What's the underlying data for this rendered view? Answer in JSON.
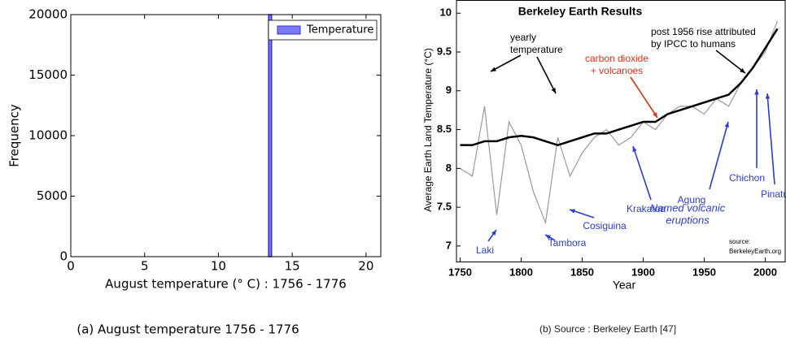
{
  "chart_data": [
    {
      "type": "histogram",
      "caption": "(a) August temperature 1756 - 1776",
      "xlabel": "August temperature ($^\\circ$ C) : 1756 - 1776",
      "ylabel": "Frequency",
      "bins": [
        13.4,
        13.6
      ],
      "series": [
        {
          "name": "Temperature",
          "color": "#7b7bf5",
          "values": [
            20000
          ]
        }
      ],
      "xlim": [
        0,
        21
      ],
      "xticks": [
        0,
        5,
        10,
        15,
        20
      ],
      "ylim": [
        0,
        20000
      ],
      "yticks": [
        0,
        5000,
        10000,
        15000,
        20000
      ],
      "legend": "upper right"
    },
    {
      "type": "line",
      "caption": "(b) Source : Berkeley Earth [47]",
      "title": "Berkeley Earth Results",
      "xlabel": "Year",
      "ylabel": "Average Earth Land Temperature (°C)",
      "x": [
        1750,
        1760,
        1770,
        1780,
        1790,
        1800,
        1810,
        1820,
        1830,
        1840,
        1850,
        1860,
        1870,
        1880,
        1890,
        1900,
        1910,
        1920,
        1930,
        1940,
        1950,
        1960,
        1970,
        1980,
        1990,
        2000,
        2010
      ],
      "series": [
        {
          "color": "#9a9a9a",
          "values": [
            8.0,
            7.9,
            8.8,
            7.4,
            8.6,
            8.3,
            7.7,
            7.3,
            8.4,
            7.9,
            8.2,
            8.4,
            8.5,
            8.3,
            8.4,
            8.6,
            8.5,
            8.7,
            8.8,
            8.8,
            8.7,
            8.9,
            8.8,
            9.1,
            9.3,
            9.5,
            9.9
          ]
        },
        {
          "color": "#000000",
          "values": [
            8.3,
            8.3,
            8.35,
            8.35,
            8.4,
            8.42,
            8.4,
            8.35,
            8.3,
            8.35,
            8.4,
            8.45,
            8.45,
            8.5,
            8.55,
            8.6,
            8.6,
            8.7,
            8.75,
            8.8,
            8.85,
            8.9,
            8.95,
            9.1,
            9.3,
            9.55,
            9.8
          ]
        }
      ],
      "xlim": [
        1747,
        2017
      ],
      "xticks": [
        1750,
        1800,
        1850,
        1900,
        1950,
        2000
      ],
      "ylim": [
        6.8,
        10.17
      ],
      "yticks": [
        7,
        7.5,
        8,
        8.5,
        9,
        9.5,
        10
      ],
      "annotations": [
        {
          "text": [
            "yearly",
            "temperature"
          ],
          "color": "#000000"
        },
        {
          "text": [
            "carbon dioxide",
            "+ volcanoes"
          ],
          "color": "#e0301e"
        },
        {
          "text": [
            "post 1956 rise attributed",
            "by IPCC to humans"
          ],
          "color": "#000000"
        },
        {
          "text": [
            "Laki"
          ],
          "color": "#2a3bd6"
        },
        {
          "text": [
            "Tambora"
          ],
          "color": "#2a3bd6"
        },
        {
          "text": [
            "Cosiguina"
          ],
          "color": "#2a3bd6"
        },
        {
          "text": [
            "Krakatoa"
          ],
          "color": "#2a3bd6"
        },
        {
          "text": [
            "Agung"
          ],
          "color": "#2a3bd6"
        },
        {
          "text": [
            "Chichon"
          ],
          "color": "#2a3bd6"
        },
        {
          "text": [
            "Pinatubo"
          ],
          "color": "#2a3bd6"
        },
        {
          "text": [
            "Named volcanic",
            "eruptions"
          ],
          "color": "#2a3bd6"
        },
        {
          "text": [
            "source:",
            "BerkeleyEarth.org"
          ],
          "color": "#000000"
        }
      ]
    }
  ]
}
